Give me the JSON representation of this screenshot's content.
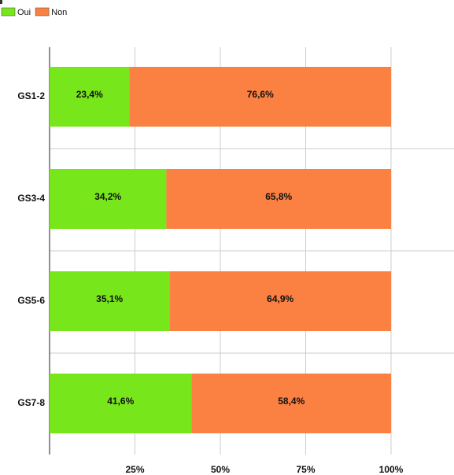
{
  "chart_data": {
    "type": "stacked-bar-horizontal",
    "categories": [
      "GS1-2",
      "GS3-4",
      "GS5-6",
      "GS7-8"
    ],
    "series": [
      {
        "name": "Oui",
        "color": "#77e61a",
        "values": [
          23.4,
          34.2,
          35.1,
          41.6
        ],
        "value_labels": [
          "23,4%",
          "34,2%",
          "35,1%",
          "41,6%"
        ]
      },
      {
        "name": "Non",
        "color": "#fb8142",
        "values": [
          76.6,
          65.8,
          64.9,
          58.4
        ],
        "value_labels": [
          "76,6%",
          "65,8%",
          "64,9%",
          "58,4%"
        ]
      }
    ],
    "xlim": [
      0,
      100
    ],
    "xticks": [
      {
        "value": 25,
        "label": "25%"
      },
      {
        "value": 50,
        "label": "50%"
      },
      {
        "value": 75,
        "label": "75%"
      },
      {
        "value": 100,
        "label": "100%"
      }
    ],
    "grid": true,
    "legend": "top-left"
  }
}
